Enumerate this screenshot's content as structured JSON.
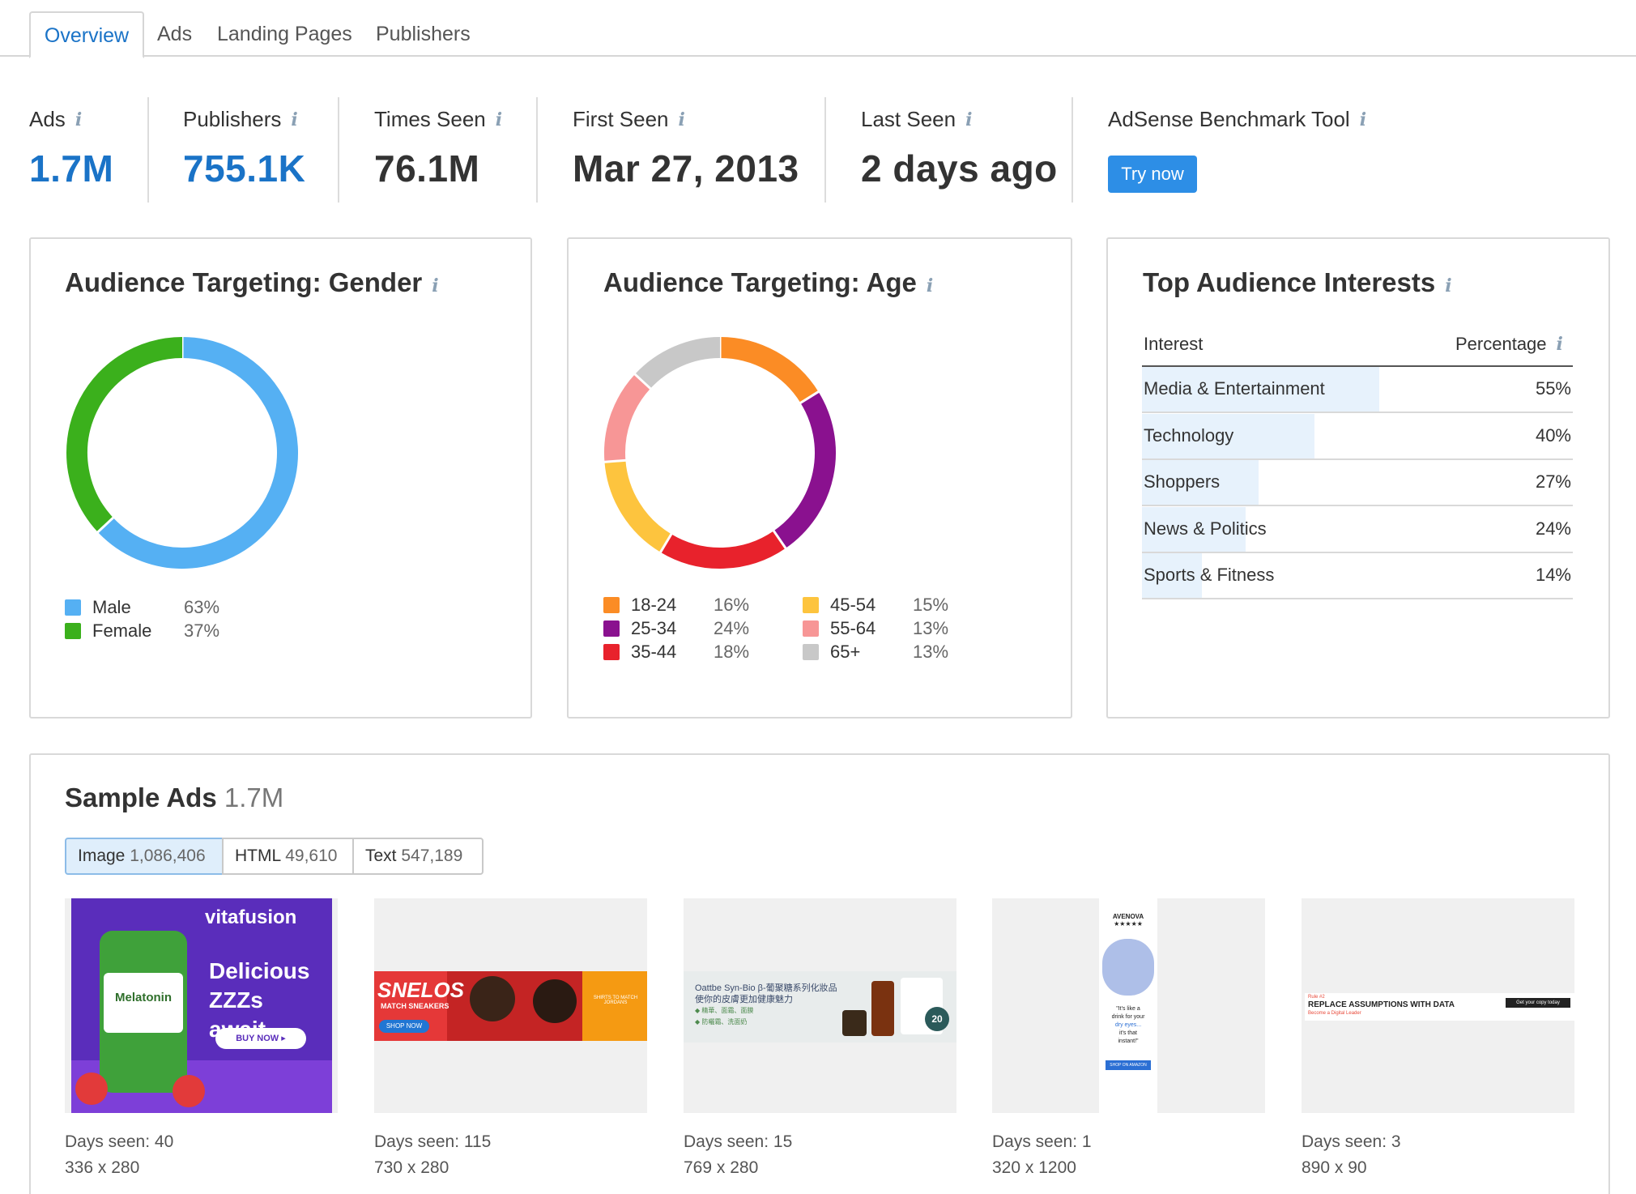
{
  "tabs": [
    "Overview",
    "Ads",
    "Landing Pages",
    "Publishers"
  ],
  "metrics": {
    "ads": {
      "label": "Ads",
      "value": "1.7M"
    },
    "publishers": {
      "label": "Publishers",
      "value": "755.1K"
    },
    "times_seen": {
      "label": "Times Seen",
      "value": "76.1M"
    },
    "first_seen": {
      "label": "First Seen",
      "value": "Mar 27, 2013"
    },
    "last_seen": {
      "label": "Last Seen",
      "value": "2 days ago"
    },
    "benchmark": {
      "label": "AdSense Benchmark Tool",
      "button": "Try now"
    }
  },
  "info_glyph": "i",
  "gender": {
    "title": "Audience Targeting: Gender",
    "legend": [
      {
        "label": "Male",
        "pct": "63%",
        "color": "#55b0f3"
      },
      {
        "label": "Female",
        "pct": "37%",
        "color": "#3bb01c"
      }
    ]
  },
  "age": {
    "title": "Audience Targeting: Age",
    "legend": [
      {
        "label": "18-24",
        "pct": "16%",
        "color": "#fb8c25"
      },
      {
        "label": "25-34",
        "pct": "24%",
        "color": "#8a118f"
      },
      {
        "label": "35-44",
        "pct": "18%",
        "color": "#e8222c"
      },
      {
        "label": "45-54",
        "pct": "15%",
        "color": "#fdc43e"
      },
      {
        "label": "55-64",
        "pct": "13%",
        "color": "#f79696"
      },
      {
        "label": "65+",
        "pct": "13%",
        "color": "#c8c8c8"
      }
    ]
  },
  "chart_data": [
    {
      "type": "pie",
      "title": "Audience Targeting: Gender",
      "categories": [
        "Male",
        "Female"
      ],
      "values": [
        63,
        37
      ]
    },
    {
      "type": "pie",
      "title": "Audience Targeting: Age",
      "categories": [
        "18-24",
        "25-34",
        "35-44",
        "45-54",
        "55-64",
        "65+"
      ],
      "values": [
        16,
        24,
        18,
        15,
        13,
        13
      ]
    }
  ],
  "interests": {
    "title": "Top Audience Interests",
    "col_interest": "Interest",
    "col_percentage": "Percentage",
    "rows": [
      {
        "name": "Media & Entertainment",
        "pct": "55%",
        "value": 55
      },
      {
        "name": "Technology",
        "pct": "40%",
        "value": 40
      },
      {
        "name": "Shoppers",
        "pct": "27%",
        "value": 27
      },
      {
        "name": "News & Politics",
        "pct": "24%",
        "value": 24
      },
      {
        "name": "Sports & Fitness",
        "pct": "14%",
        "value": 14
      }
    ]
  },
  "sample_ads": {
    "title": "Sample Ads",
    "count": "1.7M",
    "filters": [
      {
        "label": "Image",
        "count": "1,086,406"
      },
      {
        "label": "HTML",
        "count": "49,610"
      },
      {
        "label": "Text",
        "count": "547,189"
      }
    ],
    "ads": [
      {
        "days": "Days seen: 40",
        "size": "336 x 280",
        "brand": "vitafusion",
        "headline1": "Delicious",
        "headline2": "ZZZs await.",
        "cta": "BUY NOW ▸",
        "product": "Melatonin"
      },
      {
        "days": "Days seen: 115",
        "size": "730 x 280",
        "brand": "SNELOS",
        "sub": "MATCH SNEAKERS",
        "cta": "SHOP NOW",
        "side": "SHIRTS TO MATCH JORDANS"
      },
      {
        "days": "Days seen: 15",
        "size": "769 x 280",
        "line1": "Oattbe Syn-Bio β-葡聚糖系列化妝品",
        "line2": "使你的皮膚更加健康魅力",
        "line3": "◆ 精華、面霜、面膜",
        "line4": "◆ 防曬霜、洗面奶",
        "badge": "20"
      },
      {
        "days": "Days seen: 1",
        "size": "320 x 1200",
        "brand": "AVENOVA",
        "stars": "★★★★★",
        "quote1": "\"It's like a",
        "quote2": "drink for your",
        "quote3": "dry eyes...",
        "quote4": "it's that",
        "quote5": "instant!\"",
        "cta": "SHOP ON AMAZON"
      },
      {
        "days": "Days seen: 3",
        "size": "890 x 90",
        "rule": "Rule #2",
        "headline": "REPLACE ASSUMPTIONS WITH DATA",
        "sub": "Become a Digital Leader",
        "cta": "Get your copy today"
      }
    ]
  }
}
